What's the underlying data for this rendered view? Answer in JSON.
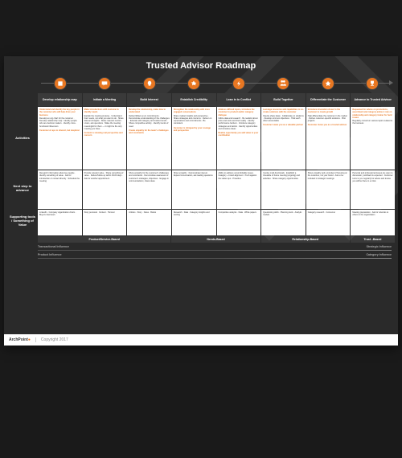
{
  "title": "Trusted Advisor Roadmap",
  "accent_color": "#e87722",
  "bg_dark": "#2a2a2a",
  "cell_bg": "#ffffff",
  "stages": [
    {
      "id": "develop",
      "label": "Develop relationship map",
      "icon": "map"
    },
    {
      "id": "initiate",
      "label": "Initiate a Meeting",
      "icon": "chat"
    },
    {
      "id": "build",
      "label": "Build Interest",
      "icon": "bulb"
    },
    {
      "id": "establish",
      "label": "Establish Credibility",
      "icon": "badge"
    },
    {
      "id": "lean",
      "label": "Lean in to Conflict",
      "icon": "bolt"
    },
    {
      "id": "together",
      "label": "Build Together",
      "icon": "group"
    },
    {
      "id": "diff",
      "label": "Differentiate the Customer",
      "icon": "star"
    },
    {
      "id": "advance",
      "label": "Advance to Trusted Advisor",
      "icon": "trophy"
    }
  ],
  "row_labels": [
    "Activities",
    "Next step to advance",
    "Supporting tools / Something of Value"
  ],
  "cells": {
    "act": [
      {
        "a": "Understand and identify the key people in the customer who will help drive your business",
        "b": "Develop an org chart for the customer · Develop relationship map · Identify people who are decision makers · Identify cross-functional influencers"
      },
      {
        "a": "Make introductions with customer & identify needs",
        "b": "Explain the meeting purpose · Understand their needs, not what you want to do · Share data and insights · Share relevant metrics · Listen, ask questions · Make the meeting meaningful for them — it might be the only meeting you have"
      },
      {
        "a": "Develop the relationship, make time to understand",
        "b": "Deliver/follow up on commitments · Demonstrate understanding of the challenges · Educate with category and market trends · Share competitive activity · Identify trends of need"
      },
      {
        "a": "Strengthen the relationship with more engaged conversations",
        "b": "Share market insights and perspective · Share strategies and concerns · Deliver on expectations and commitments · Be consistent"
      },
      {
        "a": "Address difficult topics, introduce the customer to product and/or category dialogue",
        "b": "Utilize data and research · Be realistic about price and costs and their reality · Identify performance barriers · Introduce category strategies and tactics · Identify opportunities and introduce ideas"
      },
      {
        "a": "Leverage resources and capabilities to co-create solutions with the customer",
        "b": "Openly share ideas · Collaborate on solutions · Develop common objectives · Hold each other accountable"
      },
      {
        "a": "Introduce innovation closer to the customer to create growth",
        "b": "Help differentiate the customer in the market · Deliver customer-specific solutions · Pilot projects"
      },
      {
        "a": "Requested for advice on promotions, assortment and category advisor; rely on relationship and category trainer for hard issues",
        "b": "Regularly consult on various topics related to the business"
      }
    ],
    "act_foot": [
      "Customer & reps to interact, but skeptical",
      "Content is showing real perspective and concern",
      "Create empathy for the team's challenges and constraints",
      "Customer is intrigued by your courage and perspective",
      "Realize opportunity you add value to your contribution",
      "Customer views you as a valuable partner",
      "Customer views you as a trusted advisor",
      ""
    ],
    "next": [
      "Research information about key people · Identify something of value · Ask for introduction or contact directly · Schedule the meeting",
      "Provide relevant value · Share something of value · Deliver/follow up within 30-60 days · Ask for another appointment",
      "Show empathy for the customer's challenges and constraints · Demonstrate awareness of customer's strategies, objectives · Engage in communications; share ideas",
      "Show empathy · Demonstrate interest · Expand conversation, ask leading questions",
      "Ability to address uncomfortable issues · Category + brand alignment · Push against the status quo · Proactive",
      "Involve multi-functionals · Establish a timetable of future meeting (ongoing) and activities · Share category opportunities",
      "Show empathy and a mindset of focusing on the customer, not your brand · Ask to be included in strategic meetings",
      "Personal and professional issues are open to discussion; pushback is expected · Customer turns to you regularly for advice and knows you will be there in a crisis"
    ],
    "tools": [
      "LinkedIn · Company organization charts · Buyers interviews",
      "Story personal · Content · Humour",
      "Articles · Story · News · Books",
      "Research · Data · Category insights and scoring",
      "Competitive analysis · Data · White papers",
      "Questioning skills · Planning tools · Analytic models",
      "Category research · Consumer",
      "Meeting preparation · Ask for referrals to others in the organization"
    ]
  },
  "basis": [
    "Product/Service-Based",
    "Needs-Based",
    "Relationship-Based",
    "Trust –Based"
  ],
  "influence": {
    "row1": [
      "Transactional Influence",
      "Strategic Influence"
    ],
    "row2": [
      "Product Influence",
      "Category Influence"
    ]
  },
  "footer": {
    "brand": "ArchPoint",
    "copyright": "Copyright 2017"
  }
}
